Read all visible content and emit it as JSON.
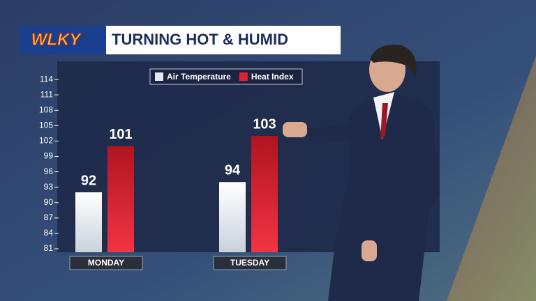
{
  "chart_data": {
    "type": "bar",
    "logo": "WLKY",
    "title": "TURNING HOT & HUMID",
    "categories": [
      "MONDAY",
      "TUESDAY"
    ],
    "series": [
      {
        "name": "Air Temperature",
        "color": "#e4e8ee",
        "values": [
          92,
          94
        ]
      },
      {
        "name": "Heat Index",
        "color": "#e0202e",
        "values": [
          101,
          103
        ]
      }
    ],
    "ylim": [
      81,
      117
    ],
    "yticks": [
      81,
      84,
      87,
      90,
      93,
      96,
      99,
      102,
      105,
      108,
      111,
      114
    ],
    "legend": "top"
  }
}
